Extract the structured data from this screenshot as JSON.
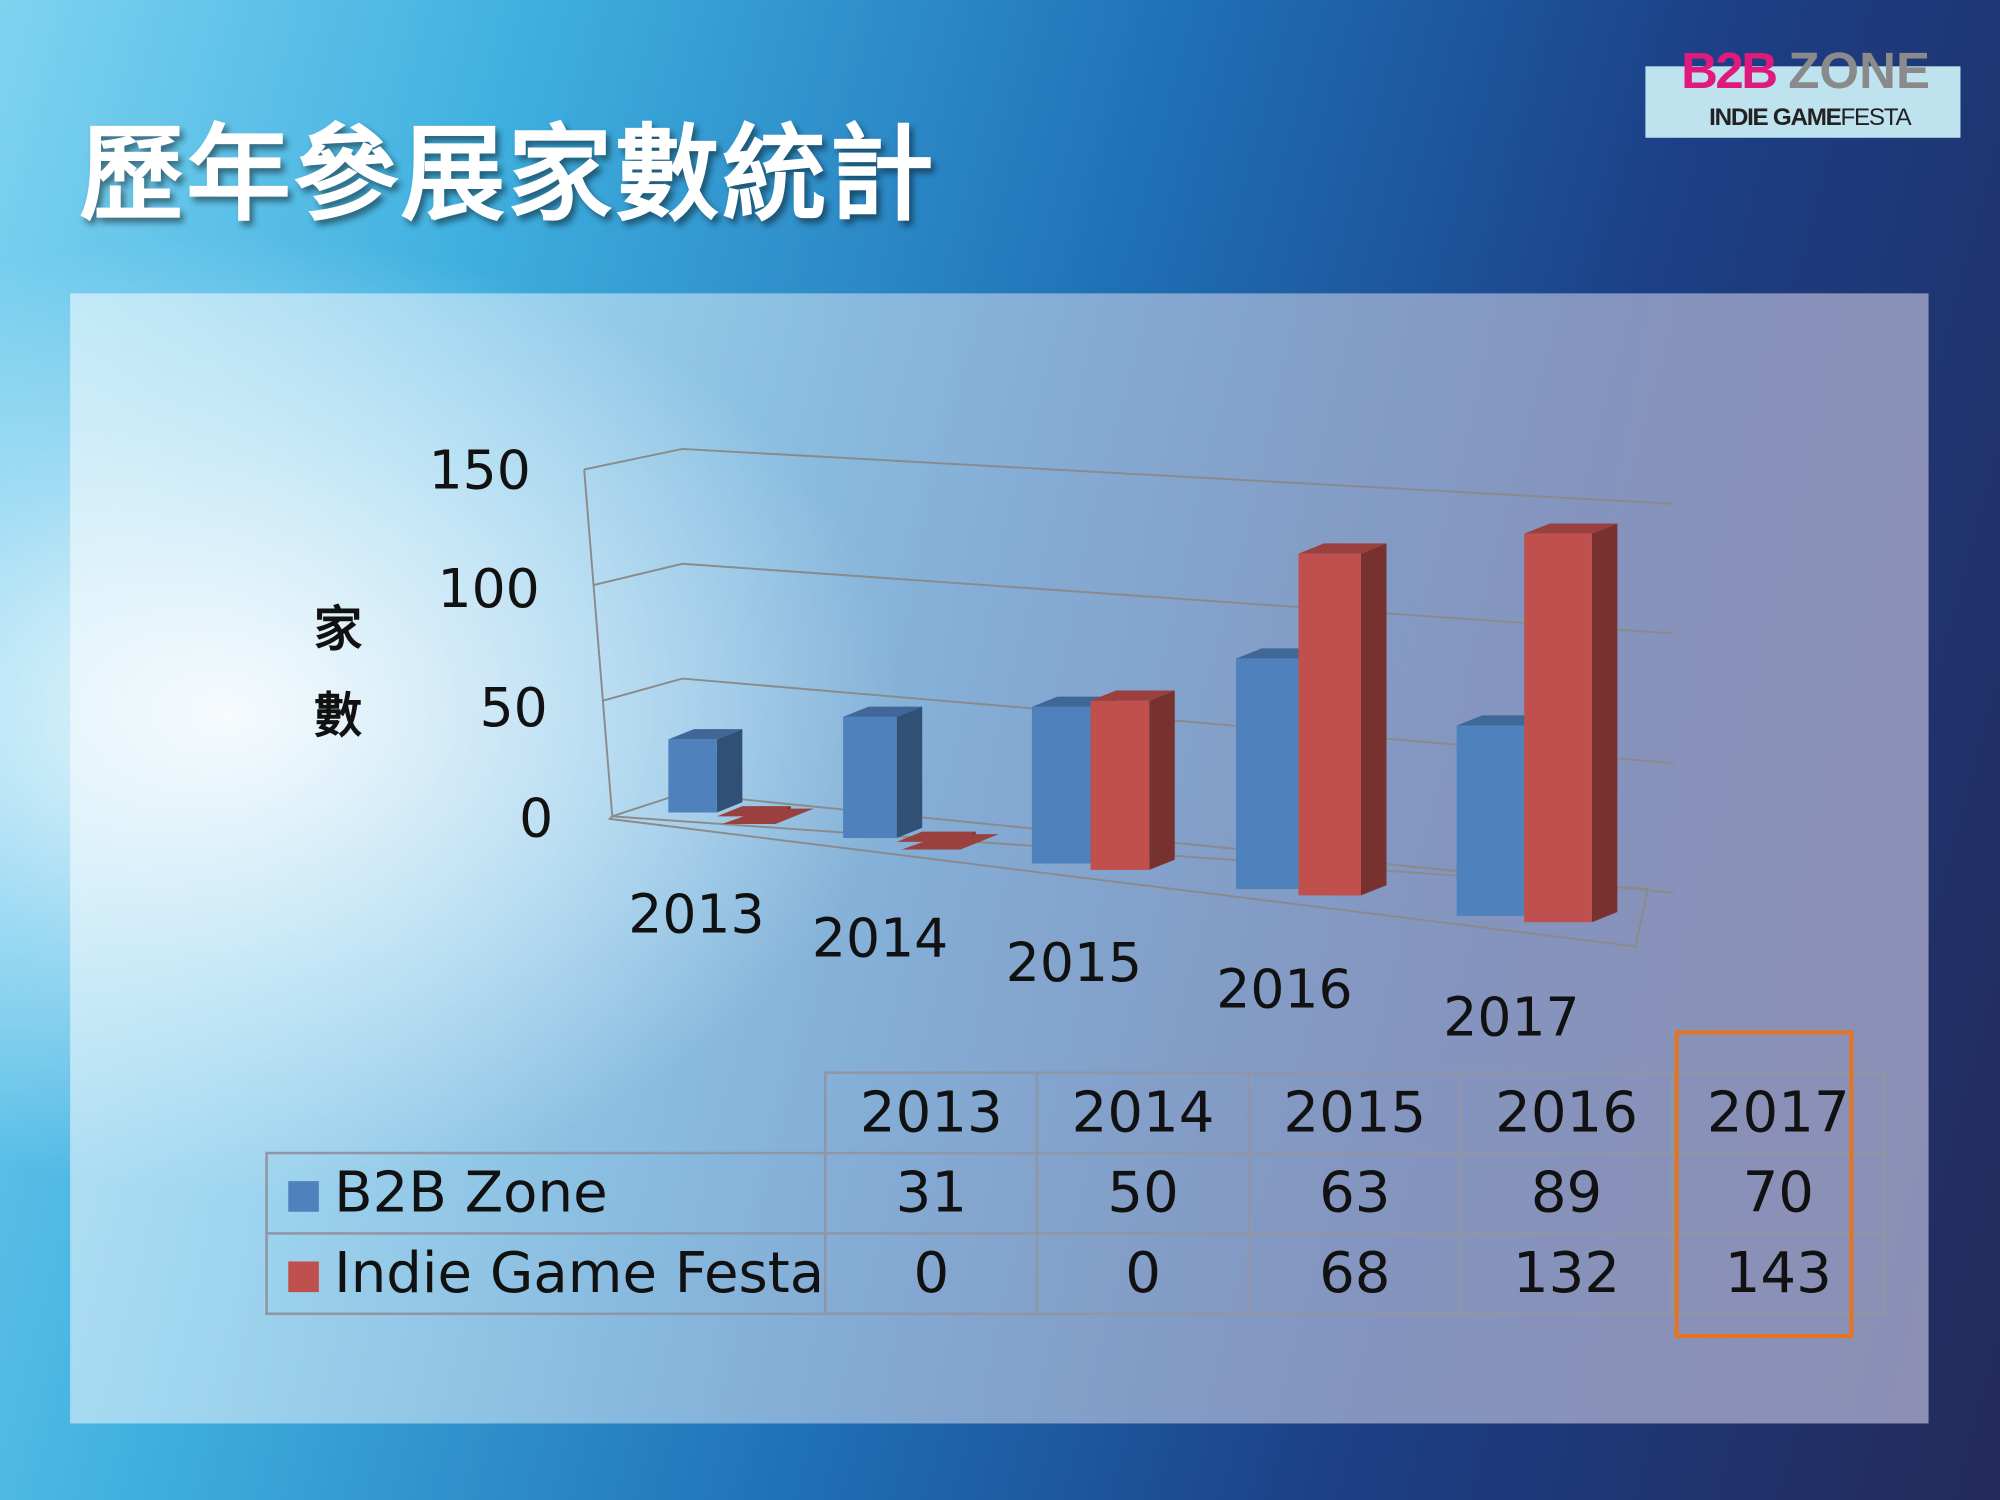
{
  "title": "歷年參展家數統計",
  "logo": {
    "b2b": "B2B",
    "zone": "ZONE",
    "indie": "INDIE GAME",
    "festa": "FESTA"
  },
  "chart_data": {
    "type": "bar",
    "style": "3d-clustered-column",
    "categories": [
      "2013",
      "2014",
      "2015",
      "2016",
      "2017"
    ],
    "series": [
      {
        "name": "B2B Zone",
        "color": "#4f81bd",
        "values": [
          31,
          50,
          63,
          89,
          70
        ]
      },
      {
        "name": "Indie Game Festa",
        "color": "#c0504d",
        "values": [
          0,
          0,
          68,
          132,
          143
        ]
      }
    ],
    "ylabel": [
      "家",
      "數"
    ],
    "ylim": [
      0,
      150
    ],
    "yticks": [
      "0",
      "50",
      "100",
      "150"
    ],
    "grid": true,
    "legend": "data-table",
    "highlight_category": "2017",
    "highlight_color": "#e8731a"
  }
}
